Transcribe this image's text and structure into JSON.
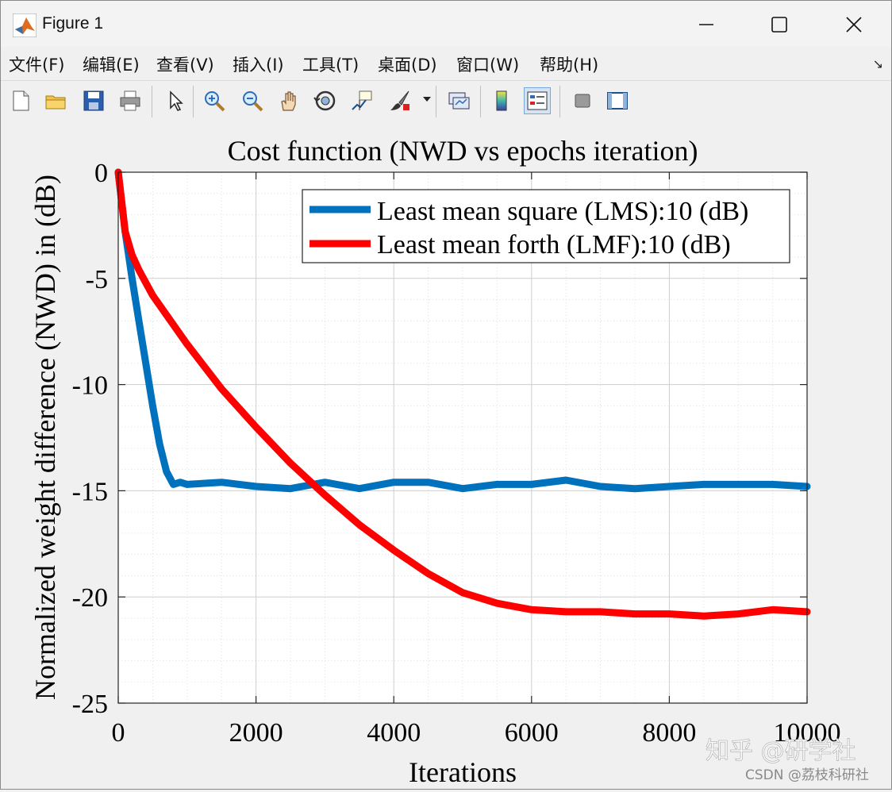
{
  "window": {
    "title": "Figure 1",
    "controls": {
      "minimize": "minimize",
      "maximize": "maximize",
      "close": "close"
    }
  },
  "menu": {
    "items": [
      "文件(F)",
      "编辑(E)",
      "查看(V)",
      "插入(I)",
      "工具(T)",
      "桌面(D)",
      "窗口(W)",
      "帮助(H)"
    ],
    "overflow_icon": "dock-arrow-icon"
  },
  "toolbar": {
    "buttons": [
      {
        "icon": "new-figure-icon"
      },
      {
        "icon": "open-file-icon"
      },
      {
        "icon": "save-icon"
      },
      {
        "icon": "print-icon"
      },
      {
        "icon": "pointer-icon"
      },
      {
        "icon": "zoom-in-icon"
      },
      {
        "icon": "zoom-out-icon"
      },
      {
        "icon": "pan-hand-icon"
      },
      {
        "icon": "rotate-3d-icon"
      },
      {
        "icon": "data-cursor-icon"
      },
      {
        "icon": "brush-icon"
      },
      {
        "icon": "link-plot-icon"
      },
      {
        "icon": "colorbar-icon"
      },
      {
        "icon": "legend-icon"
      },
      {
        "icon": "hide-plot-tools-icon"
      },
      {
        "icon": "show-plot-tools-icon"
      }
    ]
  },
  "colors": {
    "lms": "#0072bd",
    "lmf": "#ff0000",
    "grid": "#d9d9d9",
    "axes_bg": "#ffffff"
  },
  "watermark": {
    "line1": "知乎 @研学社",
    "line2": "CSDN @荔枝科研社"
  },
  "chart_data": {
    "type": "line",
    "title": "Cost function (NWD vs epochs iteration)",
    "xlabel": "Iterations",
    "ylabel": "Normalized weight difference (NWD) in (dB)",
    "xlim": [
      0,
      10000
    ],
    "ylim": [
      -25,
      0
    ],
    "xticks": [
      0,
      2000,
      4000,
      6000,
      8000,
      10000
    ],
    "yticks": [
      0,
      -5,
      -10,
      -15,
      -20,
      -25
    ],
    "grid": true,
    "minor_grid": true,
    "legend_position": "top-right",
    "series": [
      {
        "name": "Least mean square (LMS):10 (dB)",
        "color": "#0072bd",
        "x": [
          0,
          100,
          200,
          300,
          400,
          500,
          600,
          700,
          800,
          900,
          1000,
          1500,
          2000,
          2500,
          3000,
          3500,
          4000,
          4500,
          5000,
          5500,
          6000,
          6500,
          7000,
          7500,
          8000,
          8500,
          9000,
          9500,
          10000
        ],
        "y": [
          0,
          -2.8,
          -5.0,
          -7.0,
          -9.0,
          -11.0,
          -12.8,
          -14.1,
          -14.7,
          -14.6,
          -14.7,
          -14.6,
          -14.8,
          -14.9,
          -14.6,
          -14.9,
          -14.6,
          -14.6,
          -14.9,
          -14.7,
          -14.7,
          -14.5,
          -14.8,
          -14.9,
          -14.8,
          -14.7,
          -14.7,
          -14.7,
          -14.8
        ]
      },
      {
        "name": "Least mean forth (LMF):10 (dB)",
        "color": "#ff0000",
        "x": [
          0,
          100,
          200,
          300,
          400,
          500,
          1000,
          1500,
          2000,
          2500,
          3000,
          3500,
          4000,
          4500,
          5000,
          5500,
          6000,
          6500,
          7000,
          7500,
          8000,
          8500,
          9000,
          9500,
          10000
        ],
        "y": [
          0,
          -2.8,
          -3.9,
          -4.6,
          -5.2,
          -5.8,
          -8.1,
          -10.2,
          -12.0,
          -13.7,
          -15.2,
          -16.6,
          -17.8,
          -18.9,
          -19.8,
          -20.3,
          -20.6,
          -20.7,
          -20.7,
          -20.8,
          -20.8,
          -20.9,
          -20.8,
          -20.6,
          -20.7
        ]
      }
    ]
  }
}
